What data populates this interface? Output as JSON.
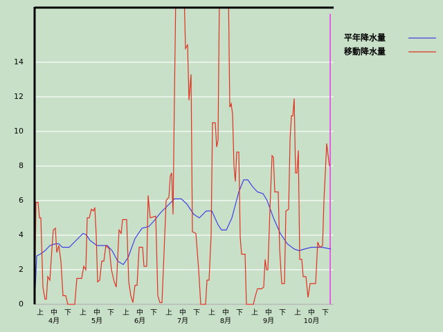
{
  "chart_data": {
    "type": "line",
    "dekads": [
      "上",
      "中",
      "下",
      "上",
      "中",
      "下",
      "上",
      "中",
      "下",
      "上",
      "中",
      "下",
      "上",
      "中",
      "下",
      "上",
      "中",
      "下",
      "上",
      "中",
      "下"
    ],
    "months": [
      "4月",
      "5月",
      "6月",
      "7月",
      "8月",
      "9月",
      "10月"
    ],
    "xlim": [
      0,
      215
    ],
    "ylim": [
      0,
      17.2
    ],
    "yticks": [
      0,
      2,
      4,
      6,
      8,
      10,
      12,
      14
    ],
    "grid": true,
    "legend": "top-right",
    "series": [
      {
        "name": "平年降水量",
        "color": "#4040e0",
        "x": [
          0,
          1.5,
          4,
          7.5,
          11,
          15,
          17.5,
          20,
          25,
          30,
          35,
          37.5,
          40,
          45,
          52.5,
          56,
          60,
          64,
          67.5,
          72.5,
          77.5,
          82.5,
          86,
          91,
          96,
          101,
          106,
          110,
          115,
          119,
          124,
          128,
          132.5,
          135,
          138.5,
          142.5,
          147.5,
          151,
          154,
          157.5,
          161,
          165,
          168,
          172.5,
          177.5,
          182.5,
          187.5,
          191,
          195,
          200,
          207.5,
          214
        ],
        "values": [
          0,
          2.8,
          2.9,
          3.1,
          3.4,
          3.5,
          3.5,
          3.3,
          3.3,
          3.7,
          4.1,
          4.0,
          3.7,
          3.4,
          3.4,
          3.1,
          2.5,
          2.3,
          2.7,
          3.8,
          4.4,
          4.5,
          4.8,
          5.3,
          5.7,
          6.1,
          6.1,
          5.8,
          5.2,
          5.0,
          5.4,
          5.4,
          4.6,
          4.3,
          4.3,
          5.0,
          6.5,
          7.2,
          7.2,
          6.8,
          6.5,
          6.4,
          6.0,
          5.0,
          4.1,
          3.5,
          3.2,
          3.1,
          3.2,
          3.3,
          3.3,
          3.2
        ]
      },
      {
        "name": "移動降水量",
        "color": "#e03020",
        "x": [
          0,
          1,
          2.5,
          3.5,
          4.5,
          6,
          7.5,
          8.5,
          9.5,
          11,
          12.5,
          13.5,
          15,
          16,
          17.5,
          19,
          20.5,
          22.5,
          24,
          29,
          30.5,
          34,
          35.5,
          37,
          38,
          39.5,
          41,
          42.5,
          43.5,
          44.5,
          45.5,
          47,
          48.5,
          50,
          51.5,
          54,
          55.5,
          57.5,
          59,
          61,
          62.5,
          63.5,
          66.5,
          68,
          69.5,
          71,
          72.5,
          74,
          75.5,
          78,
          79,
          81,
          82,
          83.5,
          87.5,
          89,
          90.5,
          92,
          93.5,
          95,
          97,
          98,
          99,
          100,
          101,
          102,
          108,
          109,
          110.5,
          111.5,
          113,
          114,
          116.5,
          118.5,
          120,
          123.5,
          124.5,
          126,
          127.5,
          128.5,
          130.5,
          131.5,
          132.5,
          133.5,
          140,
          141,
          142,
          143,
          144,
          145,
          146,
          147.5,
          148.5,
          149.5,
          152,
          153,
          158,
          159.5,
          161,
          164,
          165.5,
          166.5,
          167.5,
          168.5,
          170,
          171.5,
          172.5,
          173.5,
          176,
          177,
          178.5,
          180.5,
          181.5,
          183.5,
          184.5,
          185.5,
          186.5,
          187.5,
          188.5,
          189.5,
          190.5,
          191.5,
          193,
          194,
          196,
          197.5,
          199,
          203,
          204.5,
          206,
          208,
          209,
          211,
          212,
          213
        ],
        "values": [
          0,
          5.9,
          5.9,
          5.0,
          5.0,
          1.0,
          0.3,
          0.3,
          1.6,
          1.4,
          3.2,
          4.3,
          4.4,
          3.0,
          3.4,
          2.5,
          0.5,
          0.5,
          0,
          0,
          1.5,
          1.5,
          2.2,
          2.0,
          5.0,
          5.0,
          5.5,
          5.4,
          5.6,
          4.0,
          1.3,
          1.4,
          2.5,
          2.5,
          3.4,
          3.2,
          2.0,
          1.3,
          1.0,
          4.3,
          4.1,
          4.9,
          4.9,
          1.3,
          0.5,
          0.1,
          1.1,
          1.1,
          3.3,
          3.3,
          2.2,
          2.2,
          6.3,
          5.0,
          5.1,
          0.5,
          0.1,
          0.1,
          3.0,
          6.0,
          6.2,
          7.4,
          7.6,
          5.2,
          12,
          18,
          18,
          14.8,
          15.0,
          11.8,
          13.3,
          4.2,
          4.1,
          2.0,
          0,
          0,
          1.4,
          1.4,
          4.0,
          10.5,
          10.5,
          9.1,
          9.5,
          18,
          18,
          11.4,
          11.6,
          11.0,
          8.0,
          7.1,
          8.8,
          8.8,
          3.9,
          2.9,
          2.9,
          0,
          0,
          0.5,
          0.9,
          0.9,
          1.0,
          2.6,
          2.0,
          2.0,
          5.5,
          8.6,
          8.5,
          6.5,
          6.5,
          3.2,
          1.2,
          1.2,
          5.4,
          5.5,
          9.5,
          10.9,
          10.9,
          11.9,
          7.6,
          7.6,
          8.9,
          2.6,
          2.6,
          1.6,
          1.6,
          0.4,
          1.2,
          1.2,
          3.6,
          3.3,
          3.4,
          6.0,
          9.3,
          8.6,
          8.0
        ]
      }
    ]
  }
}
